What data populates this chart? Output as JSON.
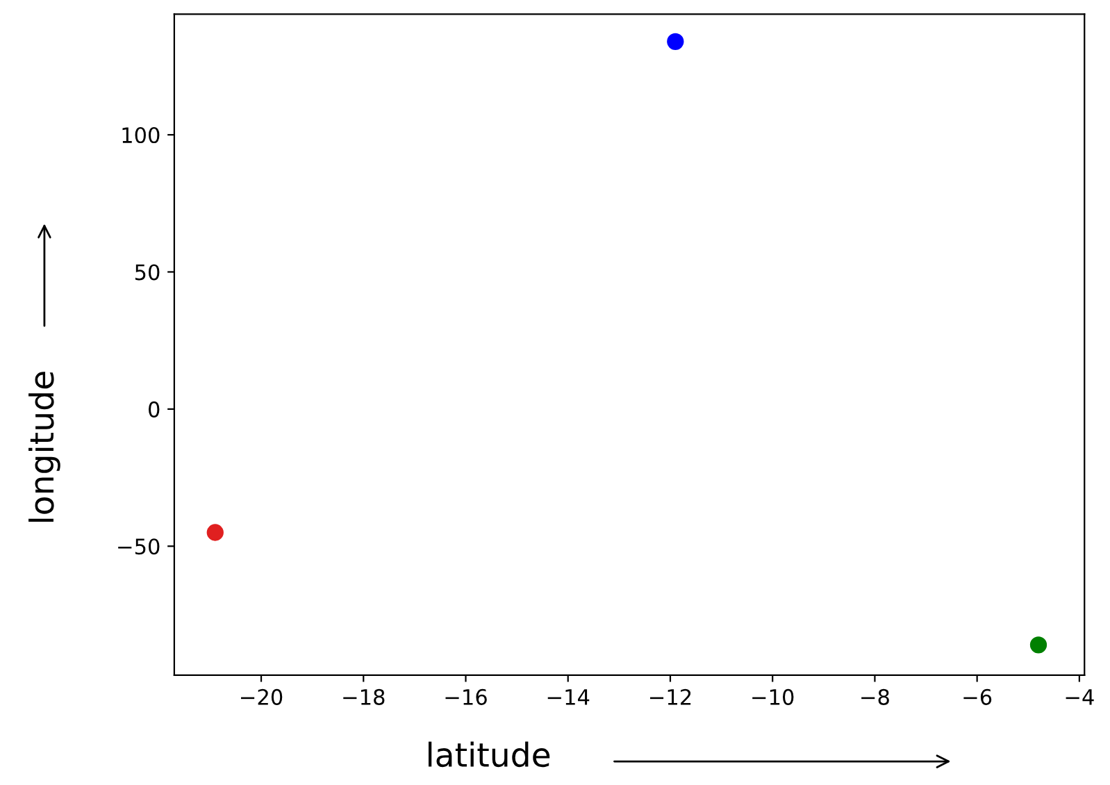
{
  "chart_data": {
    "type": "scatter",
    "xlabel": "latitude",
    "ylabel": "longitude",
    "x": [
      -20.9,
      -11.9,
      -4.8
    ],
    "values": [
      -45,
      134,
      -86
    ],
    "colors": [
      "#e02020",
      "#0000ff",
      "#008000"
    ],
    "marker": "circle",
    "xlim": [
      -21.7,
      -3.9
    ],
    "ylim": [
      -97,
      144
    ],
    "xticks": [
      {
        "value": -20,
        "label": "−20"
      },
      {
        "value": -18,
        "label": "−18"
      },
      {
        "value": -16,
        "label": "−16"
      },
      {
        "value": -14,
        "label": "−14"
      },
      {
        "value": -12,
        "label": "−12"
      },
      {
        "value": -10,
        "label": "−10"
      },
      {
        "value": -8,
        "label": "−8"
      },
      {
        "value": -6,
        "label": "−6"
      },
      {
        "value": -4,
        "label": "−4"
      }
    ],
    "yticks": [
      {
        "value": -50,
        "label": "−50"
      },
      0,
      50,
      100
    ],
    "grid": false,
    "legend": false
  }
}
